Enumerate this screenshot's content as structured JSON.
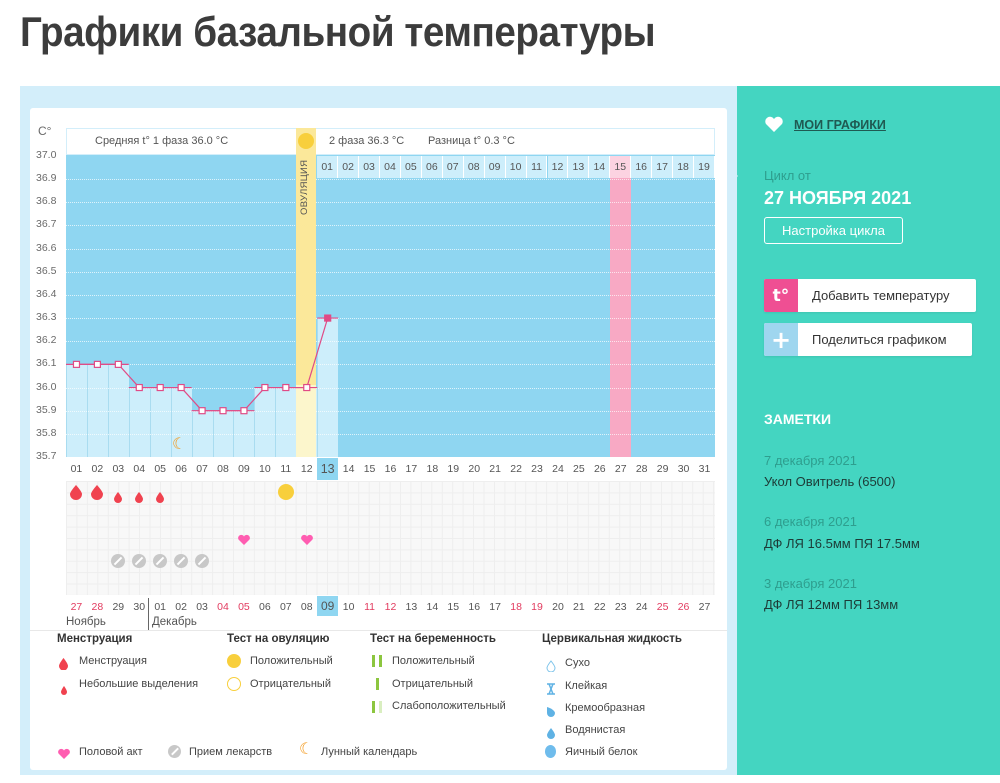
{
  "page": {
    "title": "Графики базальной температуры"
  },
  "chart_data": {
    "type": "line",
    "title": "Графики базальной температуры",
    "ylabel": "C°",
    "ylim": [
      35.7,
      37.0
    ],
    "yticks": [
      "37.0",
      "36.9",
      "36.8",
      "36.7",
      "36.6",
      "36.5",
      "36.4",
      "36.3",
      "36.2",
      "36.1",
      "36.0",
      "35.9",
      "35.8",
      "35.7"
    ],
    "x": [
      "01",
      "02",
      "03",
      "04",
      "05",
      "06",
      "07",
      "08",
      "09",
      "10",
      "11",
      "12",
      "13",
      "14",
      "15",
      "16",
      "17",
      "18",
      "19",
      "20",
      "21",
      "22",
      "23",
      "24",
      "25",
      "26",
      "27",
      "28",
      "29",
      "30",
      "31"
    ],
    "series": [
      {
        "name": "Базальная температура",
        "values": [
          36.1,
          36.1,
          36.1,
          36.0,
          36.0,
          36.0,
          35.9,
          35.9,
          35.9,
          36.0,
          36.0,
          36.0,
          36.3,
          null,
          null,
          null,
          null,
          null,
          null,
          null,
          null,
          null,
          null,
          null,
          null,
          null,
          null,
          null,
          null,
          null,
          null
        ]
      }
    ],
    "phase1_avg_label": "Средняя t° 1 фаза 36.0 °C",
    "phase2_avg_label": "2 фаза 36.3 °C",
    "difference_label": "Разница t° 0.3 °C",
    "ovulation_label": "ОВУЛЯЦИЯ",
    "ovulation_day": 12,
    "phase2_days": [
      "01",
      "02",
      "03",
      "04",
      "05",
      "06",
      "07",
      "08",
      "09",
      "10",
      "11",
      "12",
      "13",
      "14",
      "15",
      "16",
      "17",
      "18",
      "19"
    ],
    "highlight_phase2_day": "15",
    "current_cycle_day": "13",
    "calendar_dates": [
      "27",
      "28",
      "29",
      "30",
      "01",
      "02",
      "03",
      "04",
      "05",
      "06",
      "07",
      "08",
      "09",
      "10",
      "11",
      "12",
      "13",
      "14",
      "15",
      "16",
      "17",
      "18",
      "19",
      "20",
      "21",
      "22",
      "23",
      "24",
      "25",
      "26",
      "27"
    ],
    "weekend_dates_idx": [
      0,
      1,
      7,
      8,
      14,
      15,
      21,
      22,
      28,
      29
    ],
    "current_date": "09",
    "months": [
      "Ноябрь",
      "Декабрь"
    ],
    "markers": {
      "menstruation_days": [
        1,
        2
      ],
      "spotting_days": [
        3,
        4,
        5
      ],
      "ovulation_test_positive_days": [
        11
      ],
      "intercourse_days": [
        9,
        12
      ],
      "medication_days": [
        3,
        4,
        5,
        6,
        7
      ],
      "lunar_day": 6
    }
  },
  "legend": {
    "menstruation": {
      "title": "Менструация",
      "items": [
        "Менструация",
        "Небольшие выделения"
      ]
    },
    "ovulation_test": {
      "title": "Тест на овуляцию",
      "items": [
        "Положительный",
        "Отрицательный"
      ]
    },
    "pregnancy_test": {
      "title": "Тест на беременность",
      "items": [
        "Положительный",
        "Отрицательный",
        "Слабоположительный"
      ]
    },
    "cervical": {
      "title": "Цервикальная жидкость",
      "items": [
        "Сухо",
        "Клейкая",
        "Кремообразная",
        "Водянистая",
        "Яичный белок"
      ]
    },
    "other": [
      "Половой акт",
      "Прием лекарств",
      "Лунный календарь"
    ]
  },
  "sidebar": {
    "my_charts": "МОИ ГРАФИКИ",
    "cycle_from": "Цикл от",
    "cycle_date": "27 НОЯБРЯ 2021",
    "cycle_settings": "Настройка цикла",
    "add_temp_icon": "t°",
    "add_temp": "Добавить температуру",
    "share_icon": "+",
    "share": "Поделиться графиком",
    "notes_title": "ЗАМЕТКИ",
    "notes": [
      {
        "date": "7 декабря 2021",
        "text": "Укол Овитрель (6500)"
      },
      {
        "date": "6 декабря 2021",
        "text": "ДФ ЛЯ 16.5мм ПЯ 17.5мм"
      },
      {
        "date": "3 декабря 2021",
        "text": "ДФ ЛЯ 12мм ПЯ 13мм"
      }
    ]
  },
  "colors": {
    "teal": "#44d5c1",
    "plot_blue": "#8fd6f1",
    "bar_light": "#cdeefb",
    "line_pink": "#e04b86",
    "ovulation_yellow": "#fbe89a",
    "pink_column": "#f8a9c4",
    "blood_red": "#f0424f",
    "heart_pink": "#ff5db1"
  }
}
